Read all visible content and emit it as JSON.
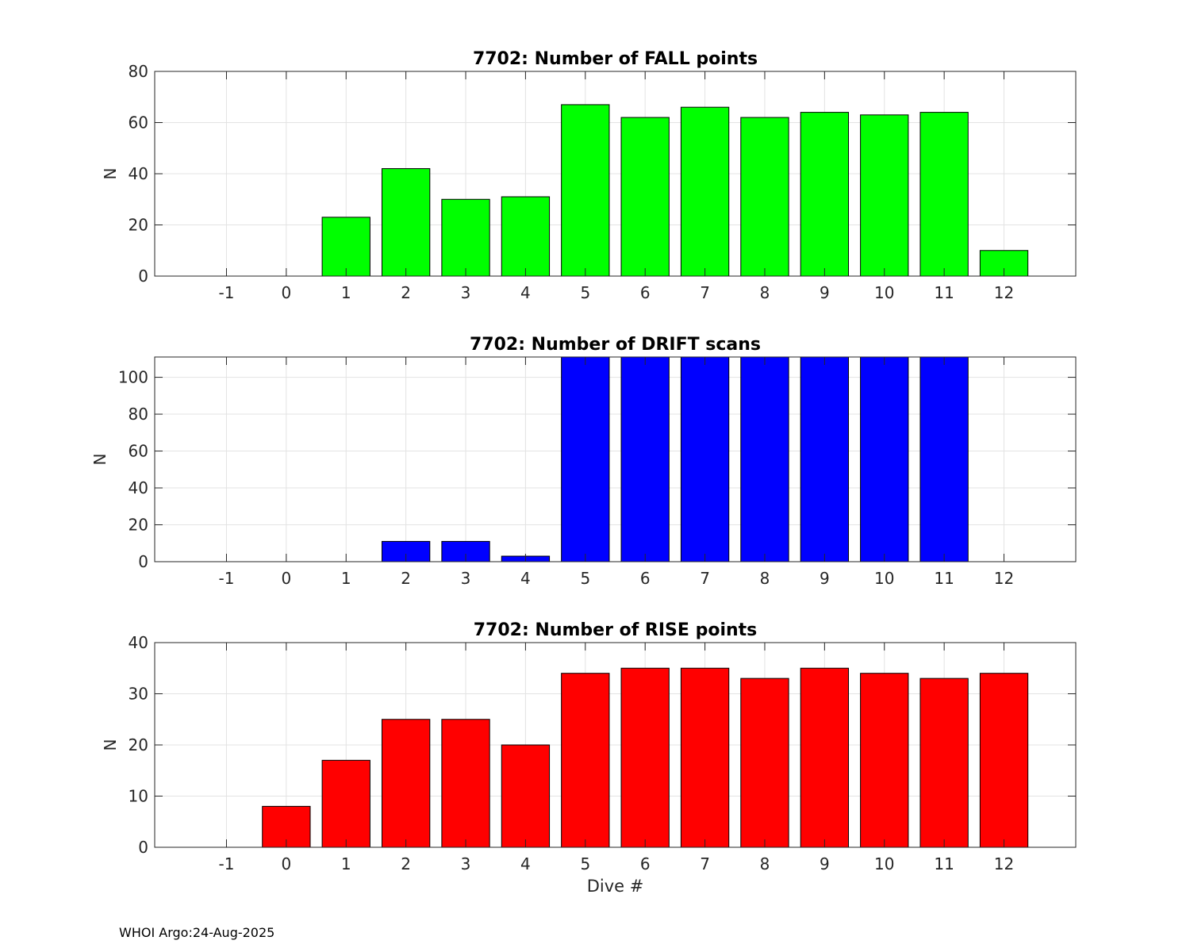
{
  "footer": "WHOI Argo:24-Aug-2025",
  "chart_data": [
    {
      "type": "bar",
      "title": "7702: Number of FALL points",
      "xlabel": "",
      "ylabel": "N",
      "color": "#00ff00",
      "x": [
        1,
        2,
        3,
        4,
        5,
        6,
        7,
        8,
        9,
        10,
        11,
        12
      ],
      "values": [
        23,
        42,
        30,
        31,
        67,
        62,
        66,
        62,
        64,
        63,
        64,
        10
      ],
      "xlim": [
        -2.2,
        13.2
      ],
      "ylim": [
        0,
        80
      ],
      "xticks": [
        -1,
        0,
        1,
        2,
        3,
        4,
        5,
        6,
        7,
        8,
        9,
        10,
        11,
        12
      ],
      "yticks": [
        0,
        20,
        40,
        60,
        80
      ],
      "grid": true
    },
    {
      "type": "bar",
      "title": "7702: Number of DRIFT scans",
      "xlabel": "",
      "ylabel": "N",
      "color": "#0000ff",
      "x": [
        2,
        3,
        4,
        5,
        6,
        7,
        8,
        9,
        10,
        11
      ],
      "values": [
        11,
        11,
        3,
        111,
        111,
        111,
        111,
        111,
        111,
        111
      ],
      "xlim": [
        -2.2,
        13.2
      ],
      "ylim": [
        0,
        111
      ],
      "xticks": [
        -1,
        0,
        1,
        2,
        3,
        4,
        5,
        6,
        7,
        8,
        9,
        10,
        11,
        12
      ],
      "yticks": [
        0,
        20,
        40,
        60,
        80,
        100
      ],
      "grid": true
    },
    {
      "type": "bar",
      "title": "7702: Number of RISE points",
      "xlabel": "Dive #",
      "ylabel": "N",
      "color": "#ff0000",
      "x": [
        0,
        1,
        2,
        3,
        4,
        5,
        6,
        7,
        8,
        9,
        10,
        11,
        12
      ],
      "values": [
        8,
        17,
        25,
        25,
        20,
        34,
        35,
        35,
        33,
        35,
        34,
        33,
        34
      ],
      "xlim": [
        -2.2,
        13.2
      ],
      "ylim": [
        0,
        40
      ],
      "xticks": [
        -1,
        0,
        1,
        2,
        3,
        4,
        5,
        6,
        7,
        8,
        9,
        10,
        11,
        12
      ],
      "yticks": [
        0,
        10,
        20,
        30,
        40
      ],
      "grid": true
    }
  ]
}
